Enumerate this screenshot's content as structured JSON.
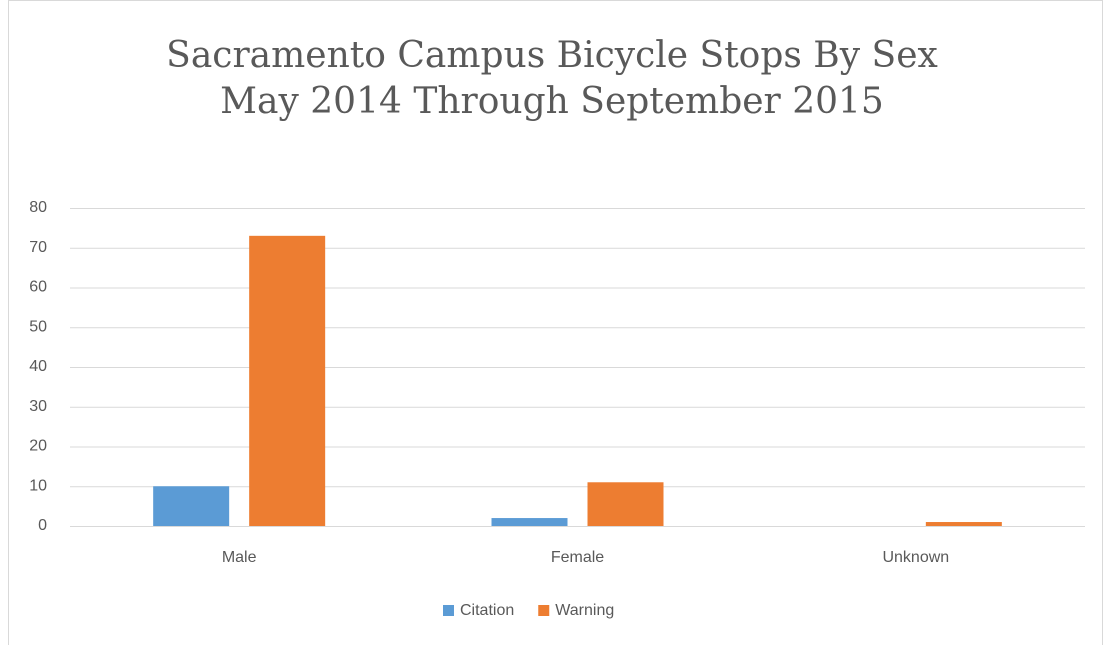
{
  "chart_data": {
    "type": "bar",
    "title": "Sacramento Campus Bicycle Stops By Sex",
    "subtitle": "May 2014 Through September 2015",
    "categories": [
      "Male",
      "Female",
      "Unknown"
    ],
    "series": [
      {
        "name": "Citation",
        "color": "#5b9bd5",
        "values": [
          10,
          2,
          0
        ]
      },
      {
        "name": "Warning",
        "color": "#ed7d31",
        "values": [
          73,
          11,
          1
        ]
      }
    ],
    "ylim": [
      0,
      80
    ],
    "yticks": [
      0,
      10,
      20,
      30,
      40,
      50,
      60,
      70,
      80
    ],
    "grid": true,
    "legend": "bottom"
  }
}
